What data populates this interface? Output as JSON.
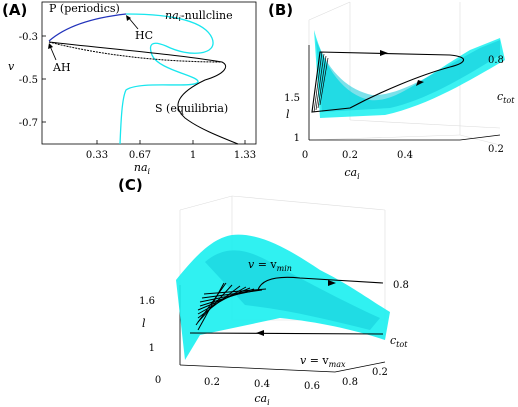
{
  "panels": {
    "a": {
      "label": "(A)",
      "xlabel_base": "na",
      "xlabel_sub": "i",
      "ylabel": "v",
      "xticks": [
        "0.33",
        "0.67",
        "1",
        "1.33"
      ],
      "yticks": [
        "-0.3",
        "-0.5",
        "-0.7"
      ],
      "annotations": {
        "periodics": "P (periodics)",
        "nullcline_base": "na",
        "nullcline_sub": "i",
        "nullcline_rest": "-nullcline",
        "hc": "HC",
        "ah": "AH",
        "equilibria": "S (equilibria)"
      }
    },
    "b": {
      "label": "(B)",
      "xlabel_base": "ca",
      "xlabel_sub": "i",
      "ylabel": "l",
      "zlabel_base": "c",
      "zlabel_sub": "tot",
      "xticks": [
        "0",
        "0.2",
        "0.4"
      ],
      "yticks": [
        "1.5",
        "1"
      ],
      "zticks": [
        "0.8",
        "0.2"
      ]
    },
    "c": {
      "label": "(C)",
      "xlabel_base": "ca",
      "xlabel_sub": "i",
      "ylabel": "l",
      "zlabel_base": "c",
      "zlabel_sub": "tot",
      "xticks": [
        "0",
        "0.2",
        "0.4",
        "0.6",
        "0.8"
      ],
      "yticks": [
        "1.6",
        "1"
      ],
      "zticks": [
        "0.8",
        "0.2"
      ],
      "annotations": {
        "vmin_lhs": "v",
        "vmin_eq": " = v",
        "vmin_sub": "min",
        "vmax_lhs": "v",
        "vmax_eq": " = v",
        "vmax_sub": "max"
      }
    }
  },
  "colors": {
    "surface": "#19f0f0",
    "surface_dark": "#0fc8d8",
    "periodic_branch": "#2233bb",
    "axes": "#000000",
    "grid": "#dddddd"
  }
}
